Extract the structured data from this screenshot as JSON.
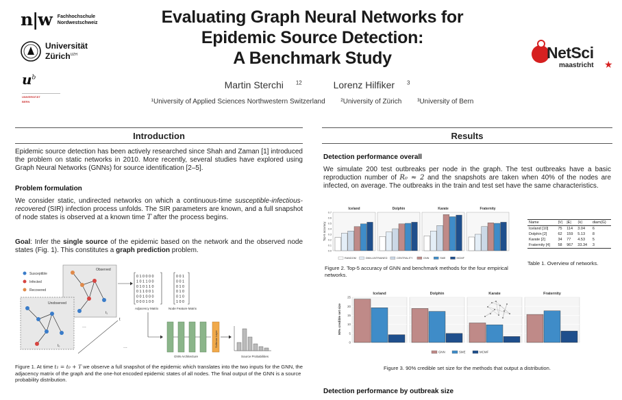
{
  "header": {
    "fhnw_mark": "n|w",
    "fhnw_line1": "Fachhochschule",
    "fhnw_line2": "Nordwestschweiz",
    "uzh_line1": "Universität",
    "uzh_line2": "Zürich",
    "uzh_sup": "UZH",
    "bern_u": "u",
    "bern_sup": "b",
    "bern_small1": "UNIVERSITÄT",
    "bern_small2": "BERN",
    "title_line1": "Evaluating Graph Neural Networks for",
    "title_line2": "Epidemic Source Detection:",
    "title_line3": "A Benchmark Study",
    "author1": "Martin Sterchi",
    "author1_sup": "12",
    "author2": "Lorenz Hilfiker",
    "author2_sup": "3",
    "affil1": "¹University of Applied Sciences Northwestern Switzerland",
    "affil2": "²University of Zürich",
    "affil3": "³University of Bern",
    "netsci_name": "NetSci",
    "netsci_sub": "maastricht",
    "netsci_star": "★"
  },
  "intro": {
    "heading": "Introduction",
    "para1": "Epidemic source detection has been actively researched since Shah and Zaman [1] introduced the problem on static networks in 2010. More recently, several studies have explored using Graph Neural Networks (GNNs) for source identification [2–5].",
    "problem_heading": "Problem formulation",
    "para2a": "We consider static, undirected networks on which a continuous-time ",
    "para2_em": "susceptible-infectious-recovered",
    "para2b": " (SIR) infection process unfolds.  The SIR parameters are known, and a full snapshot of node states is observed at a known time ",
    "para2_T": "T",
    "para2c": " after the process begins.",
    "goal_label": "Goal",
    "goal_a": ": Infer the ",
    "goal_b1": "single source",
    "goal_c": " of the epidemic based on the network and the observed node states (Fig. 1). This constitutes a ",
    "goal_b2": "graph prediction",
    "goal_d": " problem.",
    "fig1": {
      "legend": [
        "Susceptible",
        "Infected",
        "Recovered"
      ],
      "observed": "Observed",
      "unobserved": "Unobserved",
      "t1": "t₁",
      "t0": "t₀",
      "t_axis": "t",
      "ellipsis": "...",
      "adj_label": "Adjacency Matrix",
      "feat_label": "Node Feature Matrix",
      "adj_rows": [
        "0 1 0 0 0 0",
        "1 0 1 1 0 0",
        "0 1 0 1 1 0",
        "0 1 1 0 0 1",
        "0 0 1 0 0 0",
        "0 0 0 1 0 0"
      ],
      "feat_rows": [
        "0 0 1",
        "0 0 1",
        "0 1 0",
        "0 1 0",
        "0 1 0",
        "1 0 0"
      ],
      "gnn_label": "GNN Architecture",
      "softmax_label": "Softmax Layer",
      "prob_label": "Source Probabilities"
    },
    "fig1_caption_a": "Figure 1. At time ",
    "fig1_caption_math": "t₁ = t₀ + T",
    "fig1_caption_b": " we observe a full snapshot of the epidemic which translates into the two inputs for the GNN, the adjacency matrix of the graph and the one-hot encoded epidemic states of all nodes. The final output of the GNN is a source probability distribution."
  },
  "results": {
    "heading": "Results",
    "overall_heading": "Detection performance overall",
    "para1_a": "We simulate 200 test outbreaks per node in the graph.  The test outbreaks have a basic reproduction number of ",
    "para1_math": "R₀ ≈ 2",
    "para1_b": " and the snapshots are taken when 40% of the nodes are infected, on average.  The outbreaks in the train and test set have the same characteristics.",
    "fig2_caption": "Figure 2. Top-5 accuracy of GNN and benchmark methods for the four empirical networks.",
    "table_caption": "Table 1. Overview of networks.",
    "fig3_caption": "Figure 3. 90% credible set size for the methods that output a distribution.",
    "by_size_heading": "Detection performance by outbreak size"
  },
  "fig2_chart": {
    "type": "bar",
    "ylabel": "Top-5 accuracy",
    "ylim": [
      0,
      0.7
    ],
    "yticks": [
      "0.0",
      "0.1",
      "0.2",
      "0.3",
      "0.4",
      "0.5",
      "0.6",
      "0.7"
    ],
    "panels": [
      "Iceland",
      "Dolphin",
      "Karate",
      "Fraternity"
    ],
    "series": [
      {
        "name": "RANDOM",
        "color": "#ffffff",
        "values": [
          0.24,
          0.26,
          0.27,
          0.25
        ]
      },
      {
        "name": "GNN-UNTRAINED",
        "color": "#e4eef7",
        "values": [
          0.32,
          0.34,
          0.36,
          0.3
        ]
      },
      {
        "name": "CENTRALITY",
        "color": "#cbd8e6",
        "values": [
          0.36,
          0.4,
          0.46,
          0.44
        ]
      },
      {
        "name": "GNN",
        "color": "#bf8a88",
        "values": [
          0.44,
          0.49,
          0.66,
          0.51
        ]
      },
      {
        "name": "SME",
        "color": "#3f8cc8",
        "values": [
          0.49,
          0.5,
          0.62,
          0.5
        ]
      },
      {
        "name": "MCMF",
        "color": "#1f4f8c",
        "values": [
          0.52,
          0.52,
          0.65,
          0.52
        ]
      }
    ]
  },
  "fig3_chart": {
    "type": "bar",
    "ylabel": "90% credible set size",
    "ylim": [
      0,
      25
    ],
    "yticks": [
      "0",
      "5",
      "10",
      "15",
      "20",
      "25"
    ],
    "panels": [
      "Iceland",
      "Dolphin",
      "Karate",
      "Fraternity"
    ],
    "series": [
      {
        "name": "GNN",
        "color": "#bf8a88",
        "values": [
          24.0,
          18.8,
          10.8,
          15.5
        ]
      },
      {
        "name": "SME",
        "color": "#3f8cc8",
        "values": [
          19.2,
          17.2,
          9.8,
          17.5
        ]
      },
      {
        "name": "MCMF",
        "color": "#1f4f8c",
        "values": [
          4.3,
          5.0,
          3.3,
          6.3
        ]
      }
    ]
  },
  "table1": {
    "headers": [
      "Name",
      "|V|",
      "|E|",
      "⟨k⟩",
      "diam(G)"
    ],
    "rows": [
      [
        "Iceland [10]",
        "75",
        "114",
        "3.04",
        "6"
      ],
      [
        "Dolphin [2]",
        "62",
        "159",
        "5.13",
        "8"
      ],
      [
        "Karate [2]",
        "34",
        "77",
        "4.53",
        "5"
      ],
      [
        "Fraternity [4]",
        "58",
        "967",
        "33.34",
        "3"
      ]
    ]
  }
}
